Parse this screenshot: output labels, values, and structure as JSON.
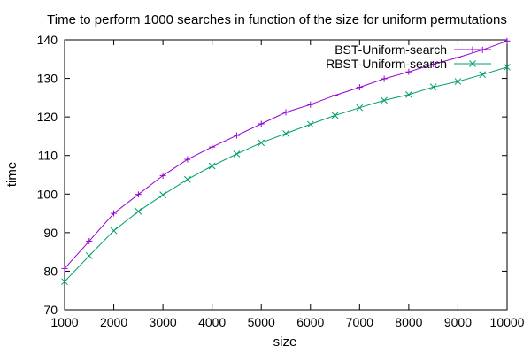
{
  "chart_data": {
    "type": "line",
    "title": "Time to perform 1000 searches in function of the size for uniform permutations",
    "xlabel": "size",
    "ylabel": "time",
    "xlim": [
      1000,
      10000
    ],
    "ylim": [
      70,
      140
    ],
    "xticks": [
      1000,
      2000,
      3000,
      4000,
      5000,
      6000,
      7000,
      8000,
      9000,
      10000
    ],
    "yticks": [
      70,
      80,
      90,
      100,
      110,
      120,
      130,
      140
    ],
    "grid": false,
    "legend_position": "top-right",
    "x": [
      1000,
      1500,
      2000,
      2500,
      3000,
      3500,
      4000,
      4500,
      5000,
      5500,
      6000,
      6500,
      7000,
      7500,
      8000,
      8500,
      9000,
      9500,
      10000
    ],
    "series": [
      {
        "name": "BST-Uniform-search",
        "color": "#9400d3",
        "marker": "plus",
        "values": [
          80.7,
          87.8,
          95.0,
          99.9,
          104.8,
          109.0,
          112.2,
          115.2,
          118.2,
          121.2,
          123.2,
          125.6,
          127.7,
          129.9,
          131.7,
          133.7,
          135.4,
          137.4,
          139.7
        ]
      },
      {
        "name": "RBST-Uniform-search",
        "color": "#009e73",
        "marker": "cross",
        "values": [
          77.3,
          84.0,
          90.5,
          95.5,
          99.8,
          103.8,
          107.3,
          110.4,
          113.3,
          115.7,
          118.1,
          120.4,
          122.4,
          124.3,
          125.8,
          127.8,
          129.2,
          131.0,
          132.9
        ]
      }
    ]
  }
}
